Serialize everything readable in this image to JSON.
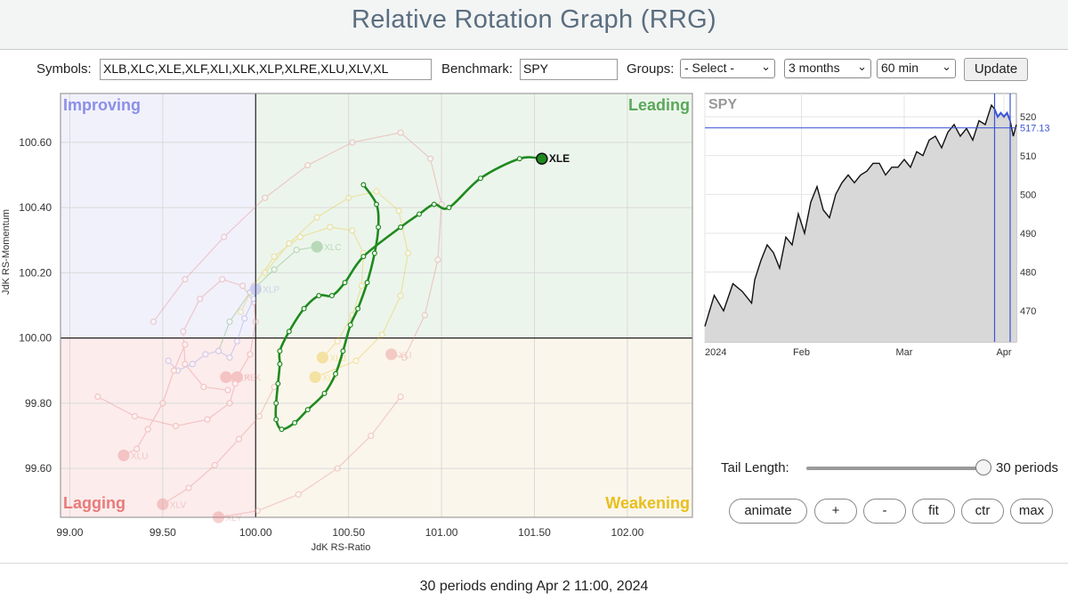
{
  "page": {
    "title": "Relative Rotation Graph (RRG)",
    "footer": "30 periods ending Apr 2 11:00, 2024"
  },
  "controls": {
    "symbols_label": "Symbols:",
    "symbols_value": "XLB,XLC,XLE,XLF,XLI,XLK,XLP,XLRE,XLU,XLV,XL",
    "benchmark_label": "Benchmark:",
    "benchmark_value": "SPY",
    "groups_label": "Groups:",
    "groups_value": "- Select -",
    "period_value": "3 months",
    "interval_value": "60 min",
    "update_label": "Update",
    "tail_label": "Tail Length:",
    "tail_value": "30 periods",
    "tail_fraction": 1.0,
    "buttons": [
      "animate",
      "+",
      "-",
      "fit",
      "ctr",
      "max"
    ]
  },
  "chart_data": [
    {
      "type": "scatter",
      "title": "",
      "xlabel": "JdK RS-Ratio",
      "ylabel": "JdK RS-Momentum",
      "xlim": [
        98.95,
        102.35
      ],
      "ylim": [
        99.45,
        100.75
      ],
      "x_ticks": [
        "99.00",
        "99.50",
        "100.00",
        "100.50",
        "101.00",
        "101.50",
        "102.00"
      ],
      "y_ticks": [
        "99.60",
        "99.80",
        "100.00",
        "100.20",
        "100.40",
        "100.60"
      ],
      "quadrants": {
        "top_left": "Improving",
        "top_right": "Leading",
        "bottom_left": "Lagging",
        "bottom_right": "Weakening"
      },
      "colors": {
        "improving": "#8c8fe8",
        "leading": "#5aa85a",
        "lagging": "#e87a7a",
        "weakening": "#e8bf1c",
        "improving_bg": "#f1f1fb",
        "leading_bg": "#ecf5ec",
        "lagging_bg": "#fcecec",
        "weakening_bg": "#faf6ec",
        "highlight": "#1e8a1e"
      },
      "highlight": {
        "name": "XLE",
        "points": [
          [
            100.58,
            100.47
          ],
          [
            100.65,
            100.41
          ],
          [
            100.66,
            100.34
          ],
          [
            100.64,
            100.26
          ],
          [
            100.6,
            100.17
          ],
          [
            100.55,
            100.09
          ],
          [
            100.51,
            100.04
          ],
          [
            100.47,
            99.96
          ],
          [
            100.43,
            99.89
          ],
          [
            100.37,
            99.83
          ],
          [
            100.28,
            99.78
          ],
          [
            100.21,
            99.74
          ],
          [
            100.14,
            99.72
          ],
          [
            100.11,
            99.75
          ],
          [
            100.11,
            99.8
          ],
          [
            100.12,
            99.86
          ],
          [
            100.13,
            99.92
          ],
          [
            100.13,
            99.96
          ],
          [
            100.18,
            100.02
          ],
          [
            100.26,
            100.09
          ],
          [
            100.34,
            100.13
          ],
          [
            100.41,
            100.13
          ],
          [
            100.48,
            100.17
          ],
          [
            100.58,
            100.25
          ],
          [
            100.78,
            100.34
          ],
          [
            100.88,
            100.38
          ],
          [
            100.96,
            100.41
          ],
          [
            101.04,
            100.4
          ],
          [
            101.21,
            100.49
          ],
          [
            101.42,
            100.55
          ],
          [
            101.54,
            100.55
          ]
        ]
      },
      "other_tails": [
        {
          "name": "XLB",
          "color": "#e8bf1c",
          "points": [
            [
              99.92,
              100.08
            ],
            [
              99.99,
              100.16
            ],
            [
              100.1,
              100.25
            ],
            [
              100.24,
              100.31
            ],
            [
              100.4,
              100.34
            ],
            [
              100.52,
              100.33
            ],
            [
              100.58,
              100.26
            ],
            [
              100.57,
              100.16
            ],
            [
              100.52,
              100.07
            ],
            [
              100.44,
              99.99
            ],
            [
              100.36,
              99.94
            ]
          ]
        },
        {
          "name": "XLC",
          "color": "#5aa85a",
          "points": [
            [
              99.8,
              99.96
            ],
            [
              99.86,
              100.05
            ],
            [
              99.97,
              100.14
            ],
            [
              100.1,
              100.21
            ],
            [
              100.22,
              100.27
            ],
            [
              100.33,
              100.28
            ]
          ]
        },
        {
          "name": "XLF",
          "color": "#e8bf1c",
          "points": [
            [
              100.05,
              100.2
            ],
            [
              100.18,
              100.29
            ],
            [
              100.33,
              100.37
            ],
            [
              100.5,
              100.43
            ],
            [
              100.65,
              100.45
            ],
            [
              100.77,
              100.39
            ],
            [
              100.82,
              100.26
            ],
            [
              100.78,
              100.13
            ],
            [
              100.68,
              100.01
            ],
            [
              100.54,
              99.93
            ],
            [
              100.32,
              99.88
            ]
          ]
        },
        {
          "name": "XLI",
          "color": "#e87a7a",
          "points": [
            [
              99.45,
              100.05
            ],
            [
              99.62,
              100.18
            ],
            [
              99.83,
              100.31
            ],
            [
              100.05,
              100.43
            ],
            [
              100.28,
              100.53
            ],
            [
              100.52,
              100.6
            ],
            [
              100.78,
              100.63
            ],
            [
              100.94,
              100.55
            ],
            [
              101.0,
              100.41
            ],
            [
              100.98,
              100.24
            ],
            [
              100.91,
              100.07
            ],
            [
              100.8,
              99.94
            ],
            [
              100.73,
              99.95
            ]
          ]
        },
        {
          "name": "XLK",
          "color": "#e87a7a",
          "points": [
            [
              99.85,
              99.84
            ],
            [
              99.72,
              99.85
            ],
            [
              99.62,
              99.92
            ],
            [
              99.61,
              100.02
            ],
            [
              99.7,
              100.12
            ],
            [
              99.82,
              100.18
            ],
            [
              99.93,
              100.16
            ],
            [
              99.99,
              100.11
            ],
            [
              100.0,
              100.05
            ],
            [
              99.97,
              99.95
            ],
            [
              99.9,
              99.88
            ]
          ]
        },
        {
          "name": "XLP",
          "color": "#8c8fe8",
          "points": [
            [
              99.53,
              99.93
            ],
            [
              99.58,
              99.9
            ],
            [
              99.66,
              99.92
            ],
            [
              99.73,
              99.95
            ],
            [
              99.8,
              99.96
            ],
            [
              99.86,
              99.94
            ],
            [
              99.9,
              99.99
            ],
            [
              99.94,
              100.06
            ],
            [
              99.99,
              100.12
            ],
            [
              100.0,
              100.15
            ]
          ]
        },
        {
          "name": "XLRE",
          "color": "#e87a7a",
          "points": [
            [
              99.15,
              99.82
            ],
            [
              99.35,
              99.76
            ],
            [
              99.57,
              99.73
            ],
            [
              99.74,
              99.75
            ],
            [
              99.86,
              99.8
            ],
            [
              99.89,
              99.86
            ],
            [
              99.84,
              99.88
            ]
          ]
        },
        {
          "name": "XLU",
          "color": "#e87a7a",
          "points": [
            [
              99.62,
              99.98
            ],
            [
              99.56,
              99.9
            ],
            [
              99.5,
              99.8
            ],
            [
              99.42,
              99.72
            ],
            [
              99.36,
              99.66
            ],
            [
              99.29,
              99.64
            ]
          ]
        },
        {
          "name": "XLV",
          "color": "#e87a7a",
          "points": [
            [
              100.1,
              99.85
            ],
            [
              100.02,
              99.76
            ],
            [
              99.91,
              99.69
            ],
            [
              99.78,
              99.61
            ],
            [
              99.64,
              99.54
            ],
            [
              99.5,
              99.49
            ]
          ]
        },
        {
          "name": "XLY",
          "color": "#e87a7a",
          "points": [
            [
              100.78,
              99.82
            ],
            [
              100.62,
              99.7
            ],
            [
              100.44,
              99.6
            ],
            [
              100.23,
              99.52
            ],
            [
              100.01,
              99.47
            ],
            [
              99.8,
              99.45
            ]
          ]
        }
      ]
    },
    {
      "type": "area",
      "title": "SPY",
      "xlim": [
        0,
        100
      ],
      "ylim": [
        462,
        526
      ],
      "x_ticks": [
        {
          "label": "2024",
          "x": 0
        },
        {
          "label": "Feb",
          "x": 31
        },
        {
          "label": "Mar",
          "x": 64
        },
        {
          "label": "Apr",
          "x": 96
        }
      ],
      "y_ticks": [
        470,
        480,
        490,
        500,
        510,
        520
      ],
      "last_value": "517.13",
      "last_value_num": 517.13,
      "highlight_range": [
        93,
        98
      ],
      "x": [
        0,
        3,
        6,
        9,
        12,
        15,
        16,
        18,
        20,
        22,
        24,
        26,
        28,
        30,
        32,
        34,
        36,
        38,
        40,
        42,
        44,
        46,
        48,
        50,
        52,
        54,
        56,
        58,
        60,
        62,
        64,
        66,
        68,
        70,
        72,
        74,
        76,
        78,
        80,
        82,
        84,
        86,
        88,
        90,
        92,
        93,
        94,
        95,
        96,
        97,
        98,
        99,
        100
      ],
      "values": [
        466,
        474,
        470,
        477,
        475,
        472,
        478,
        483,
        487,
        485,
        481,
        489,
        487,
        495,
        490,
        498,
        502,
        496,
        494,
        500,
        503,
        505,
        503,
        505,
        506,
        508,
        508,
        505,
        507,
        507,
        509,
        507,
        511,
        510,
        514,
        515,
        512,
        516,
        518,
        515,
        517,
        514,
        519,
        518,
        523,
        522,
        520,
        521,
        520,
        521,
        519,
        515,
        518
      ]
    }
  ]
}
